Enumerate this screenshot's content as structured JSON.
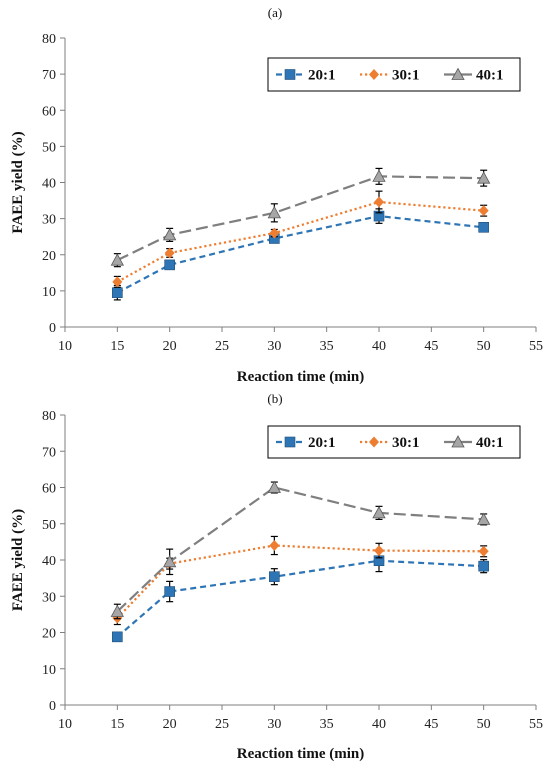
{
  "chart_data": [
    {
      "type": "line",
      "panel_label": "(a)",
      "xlabel": "Reaction time (min)",
      "ylabel": "FAEE yield (%)",
      "xlim": [
        10,
        55
      ],
      "ylim": [
        0,
        80
      ],
      "xticks": [
        10,
        15,
        20,
        25,
        30,
        35,
        40,
        45,
        50,
        55
      ],
      "yticks": [
        0,
        10,
        20,
        30,
        40,
        50,
        60,
        70,
        80
      ],
      "legend_position": "top-right",
      "x": [
        15,
        20,
        30,
        40,
        50
      ],
      "series": [
        {
          "name": "20:1",
          "color": "#2e75b6",
          "marker": "square",
          "dash": "dashed",
          "values": [
            9.5,
            17.2,
            24.5,
            30.7,
            27.6
          ],
          "errors": [
            2.0,
            1.0,
            1.0,
            2.0,
            1.2
          ]
        },
        {
          "name": "30:1",
          "color": "#ed7d31",
          "marker": "diamond",
          "dash": "dotted",
          "values": [
            12.5,
            20.5,
            26.0,
            34.6,
            32.2
          ],
          "errors": [
            1.5,
            1.2,
            1.0,
            3.0,
            1.5
          ]
        },
        {
          "name": "40:1",
          "color": "#7f7f7f",
          "marker": "triangle",
          "dash": "long-dash",
          "values": [
            18.5,
            25.5,
            31.6,
            41.7,
            41.2
          ],
          "errors": [
            1.8,
            1.8,
            2.5,
            2.2,
            2.2
          ]
        }
      ]
    },
    {
      "type": "line",
      "panel_label": "(b)",
      "xlabel": "Reaction time (min)",
      "ylabel": "FAEE yield (%)",
      "xlim": [
        10,
        55
      ],
      "ylim": [
        0,
        80
      ],
      "xticks": [
        10,
        15,
        20,
        25,
        30,
        35,
        40,
        45,
        50,
        55
      ],
      "yticks": [
        0,
        10,
        20,
        30,
        40,
        50,
        60,
        70,
        80
      ],
      "legend_position": "top-right",
      "x": [
        15,
        20,
        30,
        40,
        50
      ],
      "series": [
        {
          "name": "20:1",
          "color": "#2e75b6",
          "marker": "square",
          "dash": "dashed",
          "values": [
            18.8,
            31.3,
            35.4,
            39.8,
            38.3
          ],
          "errors": [
            1.2,
            2.8,
            2.2,
            3.0,
            1.8
          ]
        },
        {
          "name": "30:1",
          "color": "#ed7d31",
          "marker": "diamond",
          "dash": "dotted",
          "values": [
            24.0,
            39.0,
            44.0,
            42.6,
            42.4
          ],
          "errors": [
            1.8,
            1.5,
            2.5,
            2.0,
            1.5
          ]
        },
        {
          "name": "40:1",
          "color": "#7f7f7f",
          "marker": "triangle",
          "dash": "long-dash",
          "values": [
            25.8,
            39.5,
            60.0,
            53.0,
            51.2
          ],
          "errors": [
            2.0,
            3.5,
            1.5,
            1.8,
            1.5
          ]
        }
      ]
    }
  ]
}
